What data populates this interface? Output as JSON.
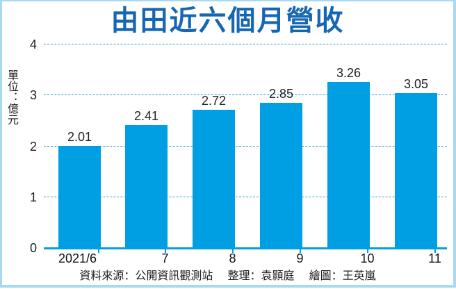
{
  "chart_data": {
    "type": "bar",
    "title": "由田近六個月營收",
    "ylabel": "單位：億元",
    "xlabel": "",
    "categories": [
      "2021/6",
      "7",
      "8",
      "9",
      "10",
      "11"
    ],
    "values": [
      2.01,
      2.41,
      2.72,
      2.85,
      3.26,
      3.05
    ],
    "value_labels": [
      "2.01",
      "2.41",
      "2.72",
      "2.85",
      "3.26",
      "3.05"
    ],
    "ylim": [
      0,
      4
    ],
    "yticks": [
      "0",
      "1",
      "2",
      "3",
      "4"
    ],
    "grid": true,
    "legend": null,
    "bar_color": "#009fe3",
    "title_color": "#1667b3",
    "source": "資料來源：公開資訊觀測站",
    "editor": "整理：袁顥庭",
    "illustrator": "繪圖：王英嵐"
  },
  "footer": {
    "text": "資料來源：公開資訊觀測站　 整理：袁顥庭　 繪圖：王英嵐"
  }
}
